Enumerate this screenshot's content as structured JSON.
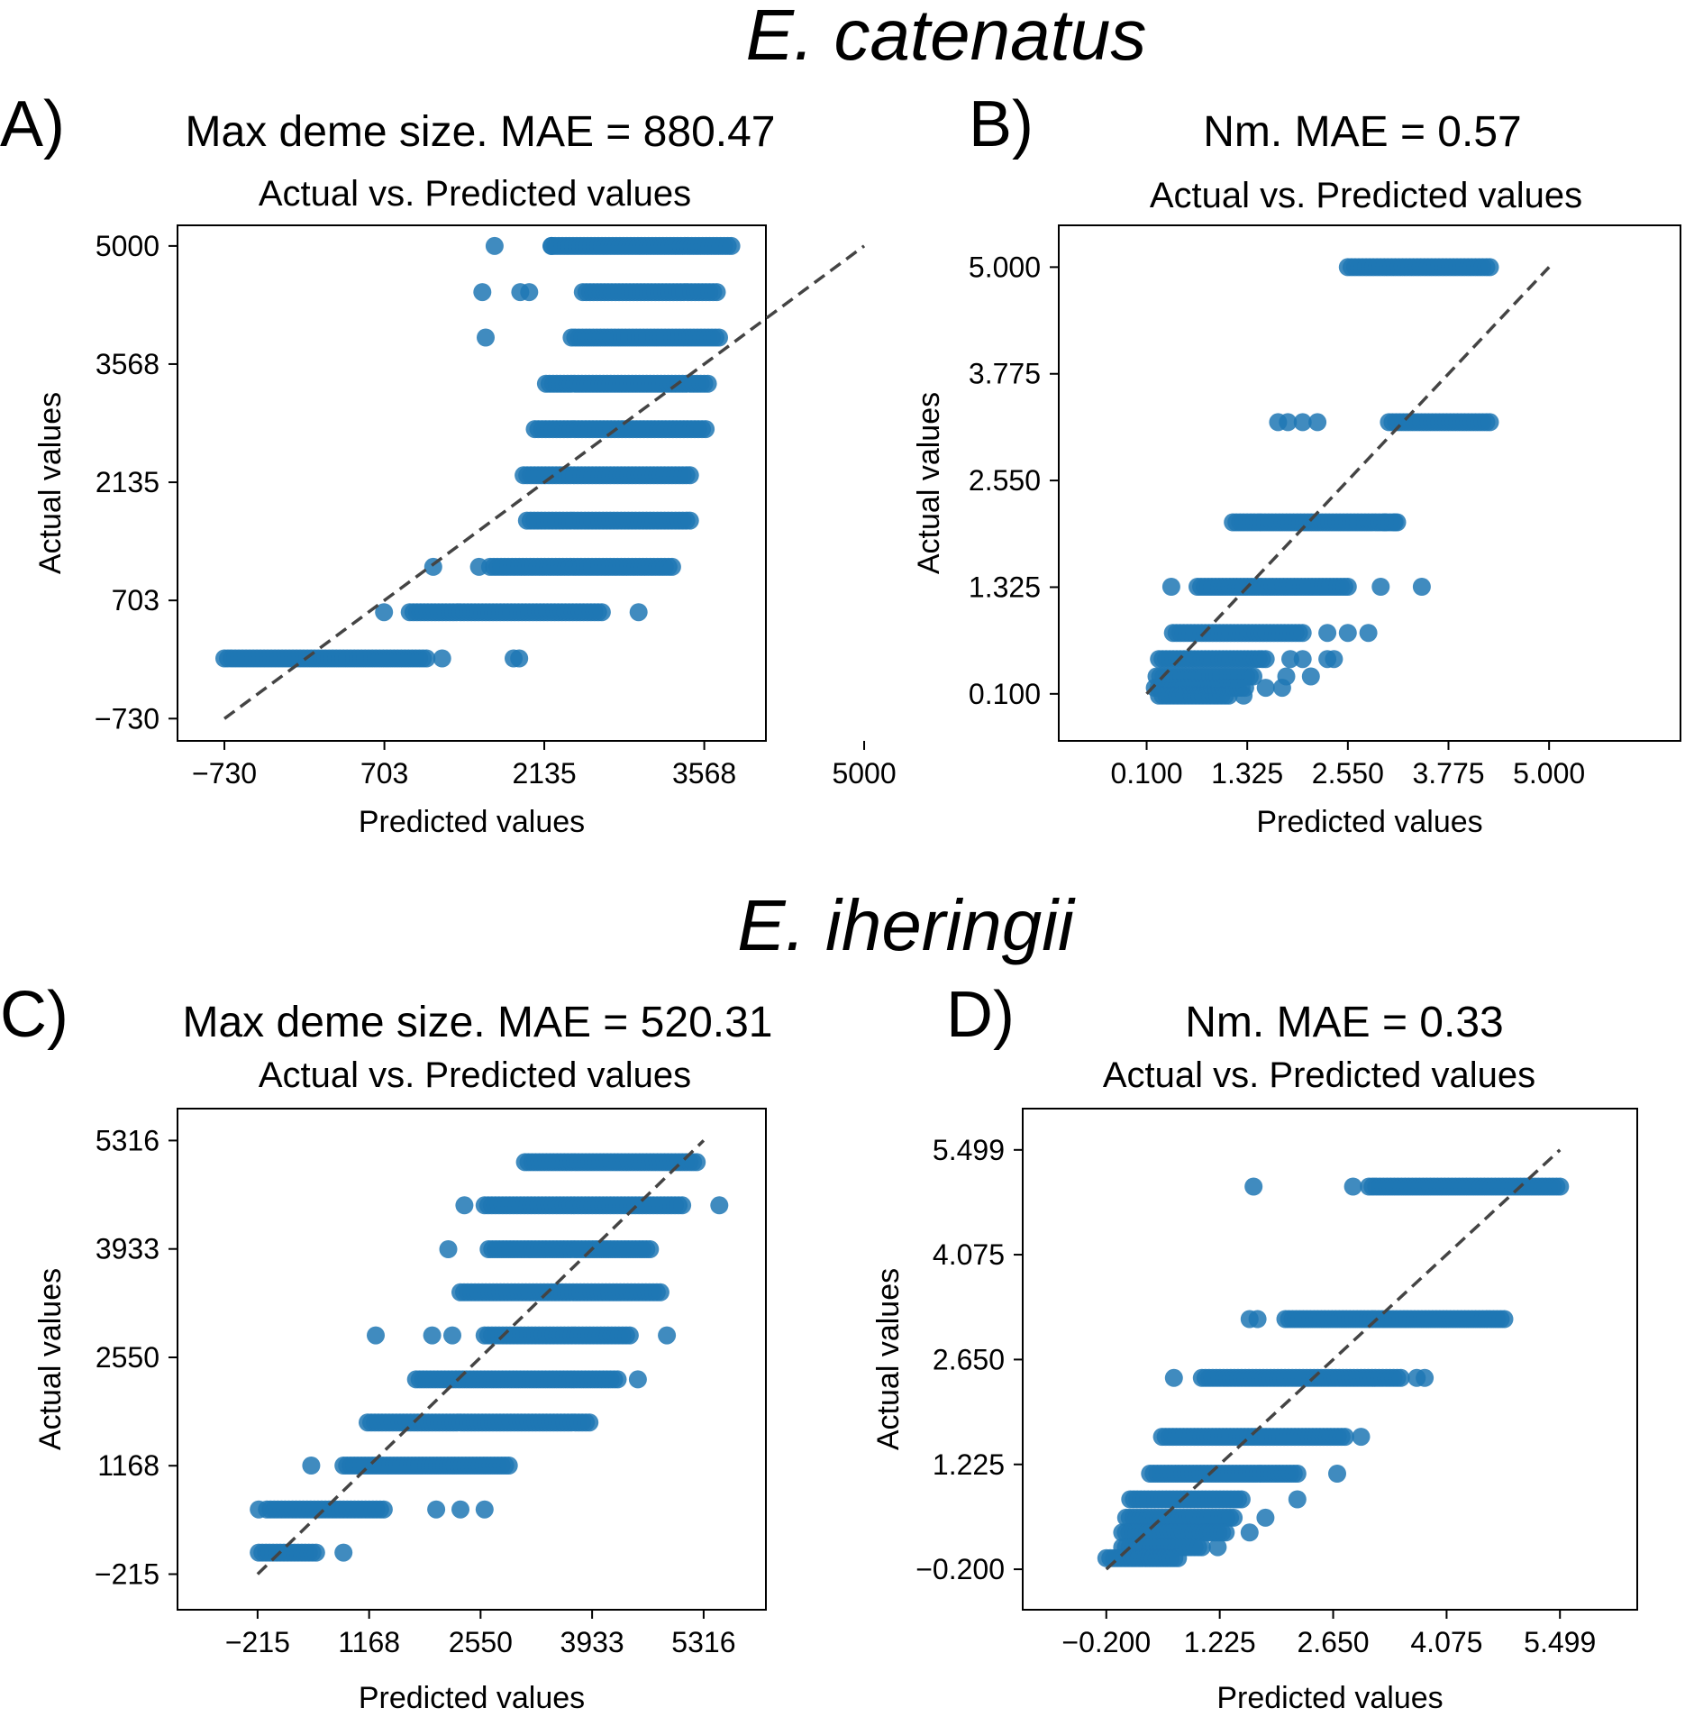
{
  "species": [
    "E. catenatus",
    "E. iheringii"
  ],
  "point_color": "#1f77b4",
  "chart_data": [
    {
      "type": "scatter",
      "panel_letter": "A)",
      "title": "Max deme size. MAE = 880.47",
      "subtitle": "Actual vs. Predicted values",
      "xlabel": "Predicted values",
      "ylabel": "Actual values",
      "xlim": [
        -1150,
        4120
      ],
      "ylim": [
        -1000,
        5250
      ],
      "xticks": [
        -730,
        703,
        2135,
        3568,
        5000
      ],
      "xticklabels": [
        "−730",
        "703",
        "2135",
        "3568",
        "5000"
      ],
      "yticks": [
        -730,
        703,
        2135,
        3568,
        5000
      ],
      "yticklabels": [
        "−730",
        "703",
        "2135",
        "3568",
        "5000"
      ],
      "identity_line": [
        [
          -730,
          -730
        ],
        [
          5000,
          5000
        ]
      ],
      "rows": [
        {
          "y": 5000,
          "x_min": 2200,
          "x_max": 3810,
          "outliers": [
            1690,
            2200
          ]
        },
        {
          "y": 4440,
          "x_min": 2480,
          "x_max": 3680,
          "outliers": [
            1580,
            1920,
            2000
          ]
        },
        {
          "y": 3890,
          "x_min": 2380,
          "x_max": 3700,
          "outliers": [
            1610
          ]
        },
        {
          "y": 3330,
          "x_min": 2150,
          "x_max": 3600,
          "outliers": []
        },
        {
          "y": 2780,
          "x_min": 2050,
          "x_max": 3580,
          "outliers": []
        },
        {
          "y": 2220,
          "x_min": 1950,
          "x_max": 3440,
          "outliers": []
        },
        {
          "y": 1670,
          "x_min": 1980,
          "x_max": 3440,
          "outliers": []
        },
        {
          "y": 1110,
          "x_min": 1650,
          "x_max": 3280,
          "outliers": [
            1140,
            1550
          ]
        },
        {
          "y": 560,
          "x_min": 930,
          "x_max": 2650,
          "outliers": [
            700,
            2980
          ]
        },
        {
          "y": 0,
          "x_min": -730,
          "x_max": 1080,
          "outliers": [
            1220,
            1860,
            1910
          ]
        }
      ]
    },
    {
      "type": "scatter",
      "panel_letter": "B)",
      "title": "Nm. MAE = 0.57",
      "subtitle": "Actual vs. Predicted values",
      "xlabel": "Predicted values",
      "ylabel": "Actual values",
      "xlim": [
        -0.97,
        6.6
      ],
      "ylim": [
        -0.44,
        5.48
      ],
      "xticks": [
        0.1,
        1.325,
        2.55,
        3.775,
        5.0
      ],
      "xticklabels": [
        "0.100",
        "1.325",
        "2.550",
        "3.775",
        "5.000"
      ],
      "yticks": [
        0.1,
        1.325,
        2.55,
        3.775,
        5.0
      ],
      "yticklabels": [
        "0.100",
        "1.325",
        "2.550",
        "3.775",
        "5.000"
      ],
      "identity_line": [
        [
          0.1,
          0.1
        ],
        [
          5.0,
          5.0
        ]
      ],
      "rows": [
        {
          "y": 5.0,
          "x_min": 2.55,
          "x_max": 4.28,
          "outliers": []
        },
        {
          "y": 3.22,
          "x_min": 3.05,
          "x_max": 4.28,
          "outliers": [
            1.7,
            1.82,
            2.0,
            2.18
          ]
        },
        {
          "y": 2.07,
          "x_min": 1.15,
          "x_max": 3.15,
          "outliers": [
            3.0,
            3.12
          ]
        },
        {
          "y": 1.33,
          "x_min": 0.72,
          "x_max": 2.55,
          "outliers": [
            0.4,
            2.95,
            3.45
          ]
        },
        {
          "y": 0.8,
          "x_min": 0.42,
          "x_max": 2.0,
          "outliers": [
            2.3,
            2.55,
            2.8
          ]
        },
        {
          "y": 0.5,
          "x_min": 0.25,
          "x_max": 1.55,
          "outliers": [
            1.85,
            2.0,
            2.3,
            2.38
          ]
        },
        {
          "y": 0.3,
          "x_min": 0.22,
          "x_max": 1.4,
          "outliers": [
            1.8,
            2.1
          ]
        },
        {
          "y": 0.17,
          "x_min": 0.2,
          "x_max": 1.3,
          "outliers": [
            1.55,
            1.75
          ]
        },
        {
          "y": 0.08,
          "x_min": 0.25,
          "x_max": 1.1,
          "outliers": [
            1.28
          ]
        }
      ]
    },
    {
      "type": "scatter",
      "panel_letter": "C)",
      "title": "Max deme size. MAE = 520.31",
      "subtitle": "Actual vs. Predicted values",
      "xlabel": "Predicted values",
      "ylabel": "Actual values",
      "xlim": [
        -1208,
        6088
      ],
      "ylim": [
        -669,
        5723
      ],
      "xticks": [
        -215,
        1168,
        2550,
        3933,
        5316
      ],
      "xticklabels": [
        "−215",
        "1168",
        "2550",
        "3933",
        "5316"
      ],
      "yticks": [
        -215,
        1168,
        2550,
        3933,
        5316
      ],
      "yticklabels": [
        "−215",
        "1168",
        "2550",
        "3933",
        "5316"
      ],
      "identity_line": [
        [
          -215,
          -215
        ],
        [
          5316,
          5316
        ]
      ],
      "rows": [
        {
          "y": 5040,
          "x_min": 3100,
          "x_max": 5230,
          "outliers": []
        },
        {
          "y": 4490,
          "x_min": 2600,
          "x_max": 5050,
          "outliers": [
            2350,
            5510
          ]
        },
        {
          "y": 3930,
          "x_min": 2650,
          "x_max": 4650,
          "outliers": [
            2150
          ]
        },
        {
          "y": 3380,
          "x_min": 2300,
          "x_max": 4780,
          "outliers": []
        },
        {
          "y": 2830,
          "x_min": 2600,
          "x_max": 4400,
          "outliers": [
            1250,
            1950,
            2200,
            4860
          ]
        },
        {
          "y": 2270,
          "x_min": 1750,
          "x_max": 4250,
          "outliers": [
            4500
          ]
        },
        {
          "y": 1720,
          "x_min": 1150,
          "x_max": 3900,
          "outliers": []
        },
        {
          "y": 1170,
          "x_min": 850,
          "x_max": 2900,
          "outliers": [
            450
          ]
        },
        {
          "y": 610,
          "x_min": -100,
          "x_max": 1350,
          "outliers": [
            -200,
            2000,
            2300,
            2600
          ]
        },
        {
          "y": 60,
          "x_min": -200,
          "x_max": 510,
          "outliers": [
            850
          ]
        }
      ]
    },
    {
      "type": "scatter",
      "panel_letter": "D)",
      "title": "Nm. MAE = 0.33",
      "subtitle": "Actual vs. Predicted values",
      "xlabel": "Predicted values",
      "ylabel": "Actual values",
      "xlim": [
        -1.25,
        6.47
      ],
      "ylim": [
        -0.75,
        6.06
      ],
      "xticks": [
        -0.2,
        1.225,
        2.65,
        4.075,
        5.499
      ],
      "xticklabels": [
        "−0.200",
        "1.225",
        "2.650",
        "4.075",
        "5.499"
      ],
      "yticks": [
        -0.2,
        1.225,
        2.65,
        4.075,
        5.499
      ],
      "yticklabels": [
        "−0.200",
        "1.225",
        "2.650",
        "4.075",
        "5.499"
      ],
      "identity_line": [
        [
          -0.2,
          -0.2
        ],
        [
          5.499,
          5.499
        ]
      ],
      "rows": [
        {
          "y": 5.0,
          "x_min": 3.1,
          "x_max": 5.5,
          "outliers": [
            1.65,
            2.9
          ]
        },
        {
          "y": 3.2,
          "x_min": 2.05,
          "x_max": 4.8,
          "outliers": [
            1.6,
            1.7
          ]
        },
        {
          "y": 2.4,
          "x_min": 1.0,
          "x_max": 3.5,
          "outliers": [
            0.65,
            3.7,
            3.8
          ]
        },
        {
          "y": 1.6,
          "x_min": 0.5,
          "x_max": 2.8,
          "outliers": [
            3.0
          ]
        },
        {
          "y": 1.1,
          "x_min": 0.35,
          "x_max": 2.2,
          "outliers": [
            2.7
          ]
        },
        {
          "y": 0.75,
          "x_min": 0.1,
          "x_max": 1.5,
          "outliers": [
            2.2
          ]
        },
        {
          "y": 0.5,
          "x_min": 0.05,
          "x_max": 1.4,
          "outliers": [
            1.8
          ]
        },
        {
          "y": 0.3,
          "x_min": 0.0,
          "x_max": 1.3,
          "outliers": [
            1.6
          ]
        },
        {
          "y": 0.1,
          "x_min": 0.0,
          "x_max": 1.0,
          "outliers": [
            1.2
          ]
        },
        {
          "y": -0.05,
          "x_min": -0.15,
          "x_max": 0.7,
          "outliers": [
            -0.2
          ]
        }
      ]
    }
  ]
}
